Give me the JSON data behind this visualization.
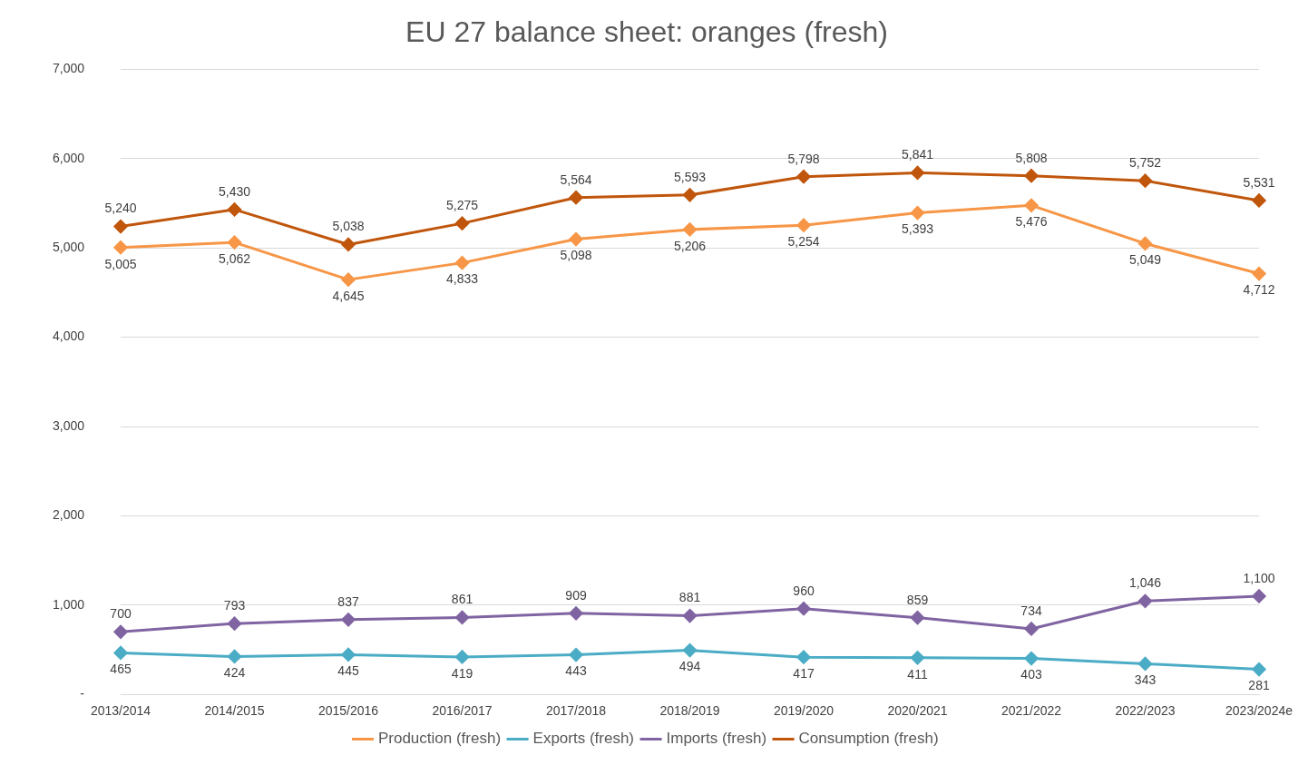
{
  "chart_data": {
    "type": "line",
    "title": "EU 27 balance sheet: oranges (fresh)",
    "categories": [
      "2013/2014",
      "2014/2015",
      "2015/2016",
      "2016/2017",
      "2017/2018",
      "2018/2019",
      "2019/2020",
      "2020/2021",
      "2021/2022",
      "2022/2023",
      "2023/2024e"
    ],
    "series": [
      {
        "name": "Production (fresh)",
        "color": "#f79646",
        "values": [
          5005,
          5062,
          4645,
          4833,
          5098,
          5206,
          5254,
          5393,
          5476,
          5049,
          4712
        ],
        "value_labels": [
          "5,005",
          "5,062",
          "4,645",
          "4,833",
          "5,098",
          "5,206",
          "5,254",
          "5,393",
          "5,476",
          "5,049",
          "4,712"
        ]
      },
      {
        "name": "Exports (fresh)",
        "color": "#4bacc6",
        "values": [
          465,
          424,
          445,
          419,
          443,
          494,
          417,
          411,
          403,
          343,
          281
        ],
        "value_labels": [
          "465",
          "424",
          "445",
          "419",
          "443",
          "494",
          "417",
          "411",
          "403",
          "343",
          "281"
        ]
      },
      {
        "name": "Imports (fresh)",
        "color": "#8064a2",
        "values": [
          700,
          793,
          837,
          861,
          909,
          881,
          960,
          859,
          734,
          1046,
          1100
        ],
        "value_labels": [
          "700",
          "793",
          "837",
          "861",
          "909",
          "881",
          "960",
          "859",
          "734",
          "1,046",
          "1,100"
        ]
      },
      {
        "name": "Consumption (fresh)",
        "color": "#c0560c",
        "values": [
          5240,
          5430,
          5038,
          5275,
          5564,
          5593,
          5798,
          5841,
          5808,
          5752,
          5531
        ],
        "value_labels": [
          "5,240",
          "5,430",
          "5,038",
          "5,275",
          "5,564",
          "5,593",
          "5,798",
          "5,841",
          "5,808",
          "5,752",
          "5,531"
        ]
      }
    ],
    "ylim": [
      0,
      7000
    ],
    "yticks": [
      {
        "value": 0,
        "label": "-"
      },
      {
        "value": 1000,
        "label": "1,000"
      },
      {
        "value": 2000,
        "label": "2,000"
      },
      {
        "value": 3000,
        "label": "3,000"
      },
      {
        "value": 4000,
        "label": "4,000"
      },
      {
        "value": 5000,
        "label": "5,000"
      },
      {
        "value": 6000,
        "label": "6,000"
      },
      {
        "value": 7000,
        "label": "7,000"
      }
    ],
    "grid": "y",
    "legend": "bottom",
    "marker": "diamond",
    "line_style": "solid"
  }
}
